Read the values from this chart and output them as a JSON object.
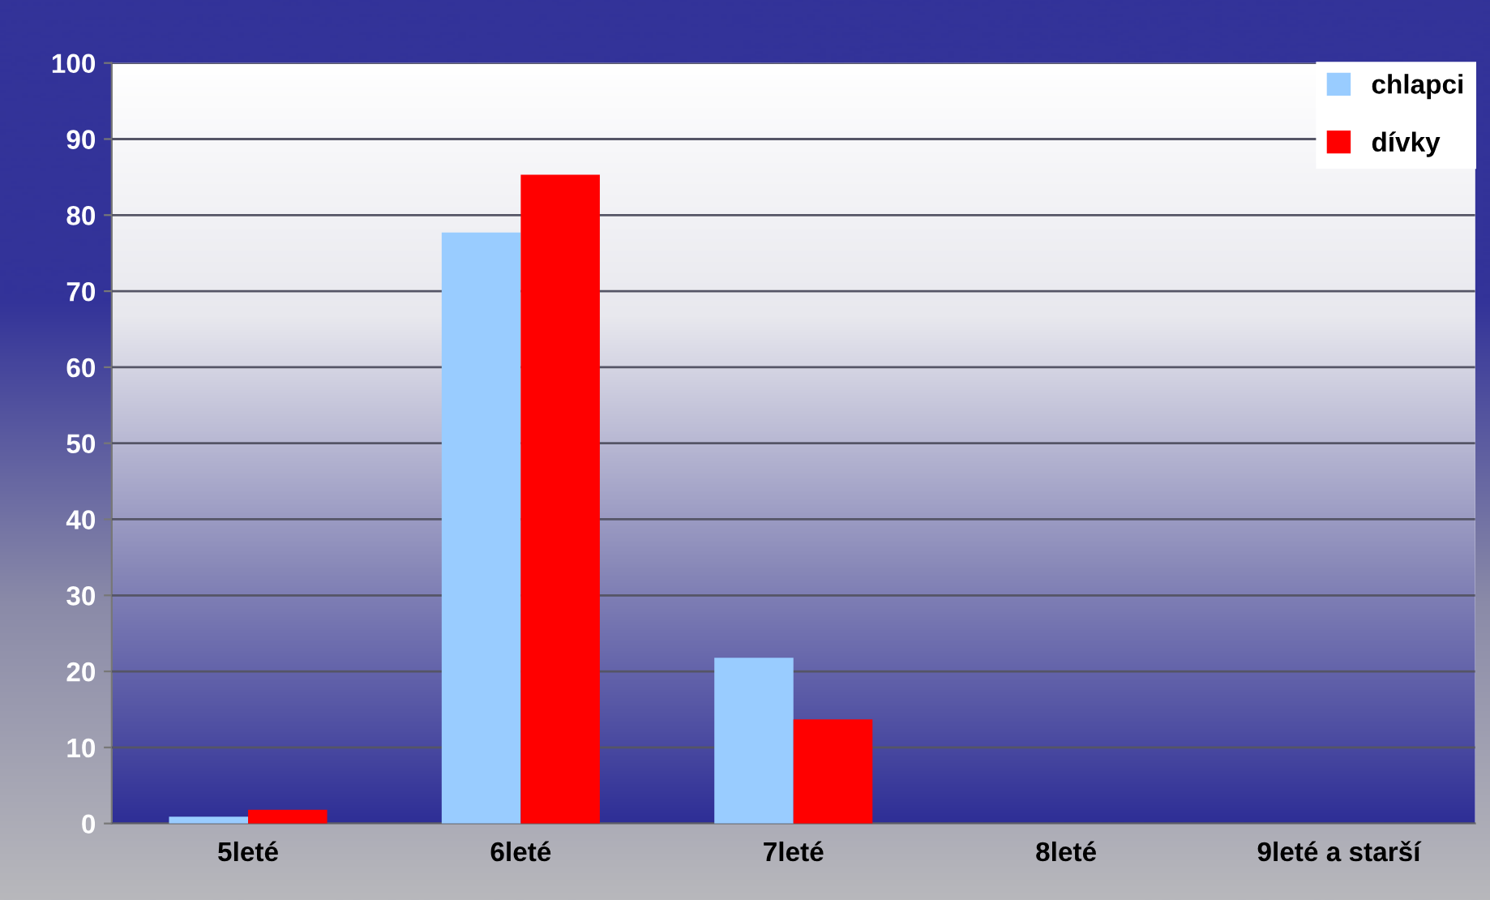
{
  "chart_data": {
    "type": "bar",
    "categories": [
      "5leté",
      "6leté",
      "7leté",
      "8leté",
      "9leté a starší"
    ],
    "series": [
      {
        "name": "chlapci",
        "color": "#99ccff",
        "values": [
          0.9,
          77.7,
          21.8,
          0,
          0
        ]
      },
      {
        "name": "dívky",
        "color": "#ff0000",
        "values": [
          1.8,
          85.3,
          13.7,
          0,
          0
        ]
      }
    ],
    "ylim": [
      0,
      100
    ],
    "yticks": [
      0,
      10,
      20,
      30,
      40,
      50,
      60,
      70,
      80,
      90,
      100
    ],
    "grid": "y",
    "legend": "top right"
  }
}
